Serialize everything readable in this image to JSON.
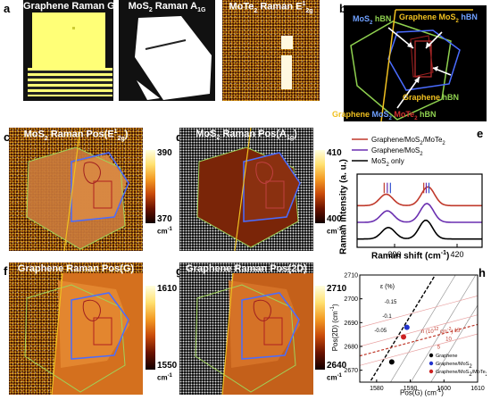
{
  "panels": {
    "a": {
      "letter": "a",
      "maps": [
        {
          "title": "Graphene Raman G"
        },
        {
          "title_main": "MoS",
          "title_sub": "2",
          "title_rest": " Raman A",
          "title_sub2": "1G"
        },
        {
          "title_main": "MoTe",
          "title_sub": "2",
          "title_rest": " Raman E",
          "title_sup": "1",
          "title_sub2": "2g"
        }
      ]
    },
    "b": {
      "letter": "b",
      "labels": {
        "mos2_hbn_1": "MoS",
        "mos2_hbn_1_sub": "2",
        "mos2_hbn_1_tail": " hBN",
        "gr_mos2_hbn_1": "Graphene MoS",
        "gr_mos2_hbn_1_sub": "2",
        "gr_mos2_hbn_1_tail": " hBN",
        "graphene_hbn_1": "Graphene",
        "graphene_hbn_1_tail": " hBN",
        "gr_mos2_mote2_hbn_1": "Graphene",
        "gr_mos2_mote2_hbn_2": " MoS",
        "gr_mos2_mote2_hbn_2_sub": "2",
        "gr_mos2_mote2_hbn_3": " MoTe",
        "gr_mos2_mote2_hbn_3_sub": "2",
        "gr_mos2_mote2_hbn_4": " hBN"
      }
    },
    "c": {
      "letter": "c",
      "title_main": "MoS",
      "title_sub": "2",
      "title_rest": " Raman Pos(E",
      "title_sup": "1",
      "title_sub2": "2g",
      "title_end": ")",
      "cb_max": "390",
      "cb_min": "370",
      "cb_unit": "cm",
      "cb_unit_sup": "-1"
    },
    "d": {
      "letter": "d",
      "title_main": "MoS",
      "title_sub": "2",
      "title_rest": " Raman Pos(A",
      "title_sub2": "1g",
      "title_end": ")",
      "cb_max": "410",
      "cb_min": "400",
      "cb_unit": "cm",
      "cb_unit_sup": "-1"
    },
    "e": {
      "letter": "e"
    },
    "f": {
      "letter": "f",
      "title": "Graphene Raman Pos(G)",
      "cb_max": "1610",
      "cb_min": "1550",
      "cb_unit": "cm",
      "cb_unit_sup": "-1"
    },
    "g": {
      "letter": "g",
      "title": "Graphene Raman Pos(2D)",
      "cb_max": "2710",
      "cb_min": "2640",
      "cb_unit": "cm",
      "cb_unit_sup": "-1"
    },
    "h": {
      "letter": "h",
      "strain_label": "ε (%)",
      "doping_label": "n (10",
      "doping_label_sup": "12",
      "doping_label_tail": " cm",
      "doping_label_sup2": "-2",
      "doping_label_end": ")",
      "strain_ticks": [
        "-0.15",
        "-0.1",
        "-0.05"
      ],
      "doping_ticks": [
        "5",
        "10",
        "15"
      ]
    }
  },
  "chart_data": [
    {
      "type": "line",
      "panel": "e",
      "xlabel": "Raman shift (cm",
      "xlabel_sup": "-1",
      "xlabel_end": ")",
      "ylabel": "Raman intensity (a. u.)",
      "xticks": [
        390,
        420
      ],
      "xlim": [
        372,
        432
      ],
      "legend": [
        {
          "name_main": "Graphene/MoS",
          "name_sub": "2",
          "name_rest": "/MoTe",
          "name_sub2": "2",
          "color": "#c0392b"
        },
        {
          "name_main": "Graphene/MoS",
          "name_sub": "2",
          "name_rest": "",
          "name_sub2": "",
          "color": "#6a2fb0"
        },
        {
          "name_main": "MoS",
          "name_sub": "2",
          "name_rest": " only",
          "name_sub2": "",
          "color": "#000000"
        }
      ],
      "series": [
        {
          "offset": 2.0,
          "color": "#c0392b",
          "peaks": [
            [
              386,
              0.55
            ],
            [
              406,
              0.9
            ]
          ]
        },
        {
          "offset": 1.2,
          "color": "#6a2fb0",
          "peaks": [
            [
              386.5,
              0.55
            ],
            [
              405.5,
              0.9
            ]
          ]
        },
        {
          "offset": 0.4,
          "color": "#000000",
          "peaks": [
            [
              387,
              0.55
            ],
            [
              405,
              0.9
            ]
          ]
        }
      ],
      "markers": [
        {
          "x": 385,
          "color": "#c0392b"
        },
        {
          "x": 386.5,
          "color": "#6a2fb0"
        },
        {
          "x": 388,
          "color": "#3050d0"
        },
        {
          "x": 404,
          "color": "#c0392b"
        },
        {
          "x": 405.2,
          "color": "#6a2fb0"
        },
        {
          "x": 406.5,
          "color": "#3050d0"
        }
      ]
    },
    {
      "type": "scatter",
      "panel": "h",
      "xlabel": "Pos(G) (cm",
      "xlabel_sup": "-1",
      "xlabel_end": ")",
      "ylabel": "Pos(2D) (cm",
      "ylabel_sup": "-1",
      "ylabel_end": ")",
      "xlim": [
        1575,
        1610
      ],
      "ylim": [
        2665,
        2710
      ],
      "xticks": [
        1580,
        1590,
        1600,
        1610
      ],
      "yticks": [
        2670,
        2680,
        2690,
        2700,
        2710
      ],
      "points": [
        {
          "name": "Graphene",
          "x": 1584.5,
          "y": 2673.5,
          "color": "#000000"
        },
        {
          "name": "Graphene/MoS",
          "name_sub": "2",
          "x": 1589,
          "y": 2688,
          "color": "#2233cc"
        },
        {
          "name": "Graphene/MoS",
          "name_sub": "2",
          "name_rest": "/MoTe",
          "name_sub2": "2",
          "x": 1588,
          "y": 2684,
          "color": "#cc2222"
        }
      ],
      "legend": [
        {
          "name_main": "Graphene",
          "name_sub": "",
          "name_rest": "",
          "name_sub2": "",
          "color": "#000000"
        },
        {
          "name_main": "Graphene/MoS",
          "name_sub": "2",
          "name_rest": "",
          "name_sub2": "",
          "color": "#2233cc"
        },
        {
          "name_main": "Graphene/MoS",
          "name_sub": "2",
          "name_rest": "/MoTe",
          "name_sub2": "2",
          "color": "#cc2222"
        }
      ]
    }
  ]
}
